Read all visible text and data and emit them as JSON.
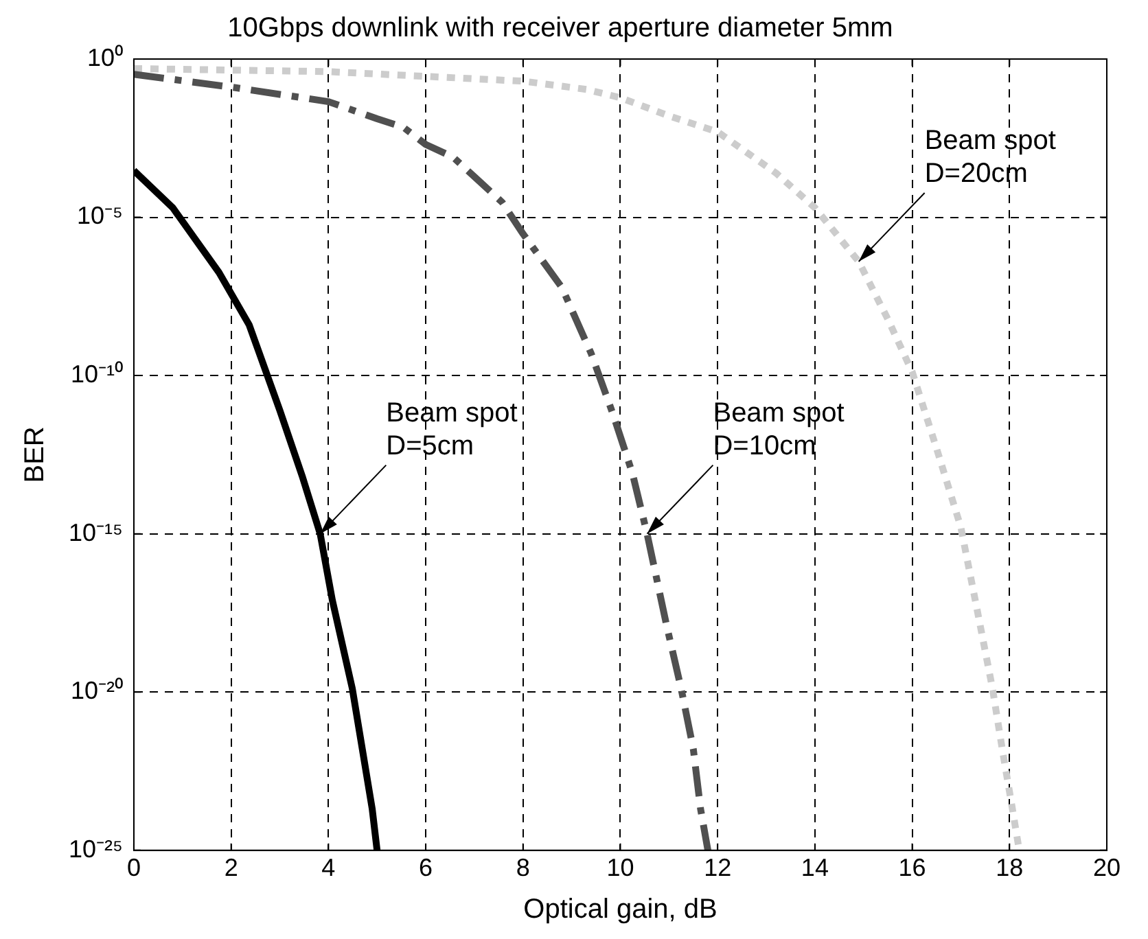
{
  "chart_data": {
    "type": "line",
    "title": "10Gbps downlink with receiver aperture diameter 5mm",
    "xlabel": "Optical gain, dB",
    "ylabel": "BER",
    "log": "y",
    "xlim": [
      0,
      20
    ],
    "xticks": [
      0,
      2,
      4,
      6,
      8,
      10,
      12,
      14,
      16,
      18,
      20
    ],
    "ylim": [
      1e-25,
      1
    ],
    "yticks": [
      {
        "value": 1e-25,
        "label": "10⁻²⁵"
      },
      {
        "value": 1e-20,
        "label": "10⁻²⁰"
      },
      {
        "value": 1e-15,
        "label": "10⁻¹⁵"
      },
      {
        "value": 1e-10,
        "label": "10⁻¹⁰"
      },
      {
        "value": 1e-05,
        "label": "10⁻⁵"
      },
      {
        "value": 1,
        "label": "10⁰"
      }
    ],
    "grid": true,
    "legend": false,
    "marker": "none",
    "series": [
      {
        "color": "#000000",
        "line_style": "solid",
        "x": [
          0,
          0.8,
          1.75,
          2.37,
          3.0,
          3.47,
          3.83,
          4.08,
          4.49,
          4.9,
          5.0
        ],
        "values": [
          0.0003,
          2e-05,
          1.8e-07,
          4e-09,
          8e-12,
          6e-14,
          1e-15,
          8e-18,
          1.3e-20,
          2e-24,
          1e-25
        ]
      },
      {
        "color": "#505050",
        "line_style": "dashed",
        "x": [
          0,
          2,
          4,
          5,
          5.54,
          6,
          6.56,
          7.57,
          8,
          8.8,
          9.4,
          9.85,
          10.25,
          10.55,
          10.95,
          11.25,
          11.5,
          11.65,
          11.8
        ],
        "values": [
          0.33,
          0.13,
          0.045,
          0.013,
          0.007,
          0.002,
          0.0008,
          3e-05,
          3e-06,
          6e-08,
          5e-10,
          6e-12,
          8e-14,
          1e-15,
          1.3e-18,
          1.3e-20,
          1.6e-22,
          2e-24,
          1e-25
        ]
      },
      {
        "color": "#cccccc",
        "line_style": "dotted",
        "x": [
          0,
          4,
          8,
          9.3,
          10,
          11,
          12,
          13.2,
          14,
          14.9,
          15.5,
          16,
          16.5,
          17,
          17.35,
          17.65,
          17.85,
          18.05,
          18.2
        ],
        "values": [
          0.5,
          0.4,
          0.2,
          0.11,
          0.06,
          0.016,
          0.005,
          0.00025,
          2e-05,
          4e-07,
          6e-09,
          1.3e-10,
          5e-13,
          1.6e-15,
          3e-18,
          1.3e-20,
          1.6e-22,
          2.5e-24,
          1e-25
        ]
      }
    ],
    "annotations": [
      {
        "text": "Beam spot\nD=5cm",
        "x": 3.83,
        "y": 1e-15
      },
      {
        "text": "Beam spot\nD=10cm",
        "x": 10.55,
        "y": 1e-15
      },
      {
        "text": "Beam spot\nD=20cm",
        "x": 14.9,
        "y": 4e-07
      }
    ]
  }
}
